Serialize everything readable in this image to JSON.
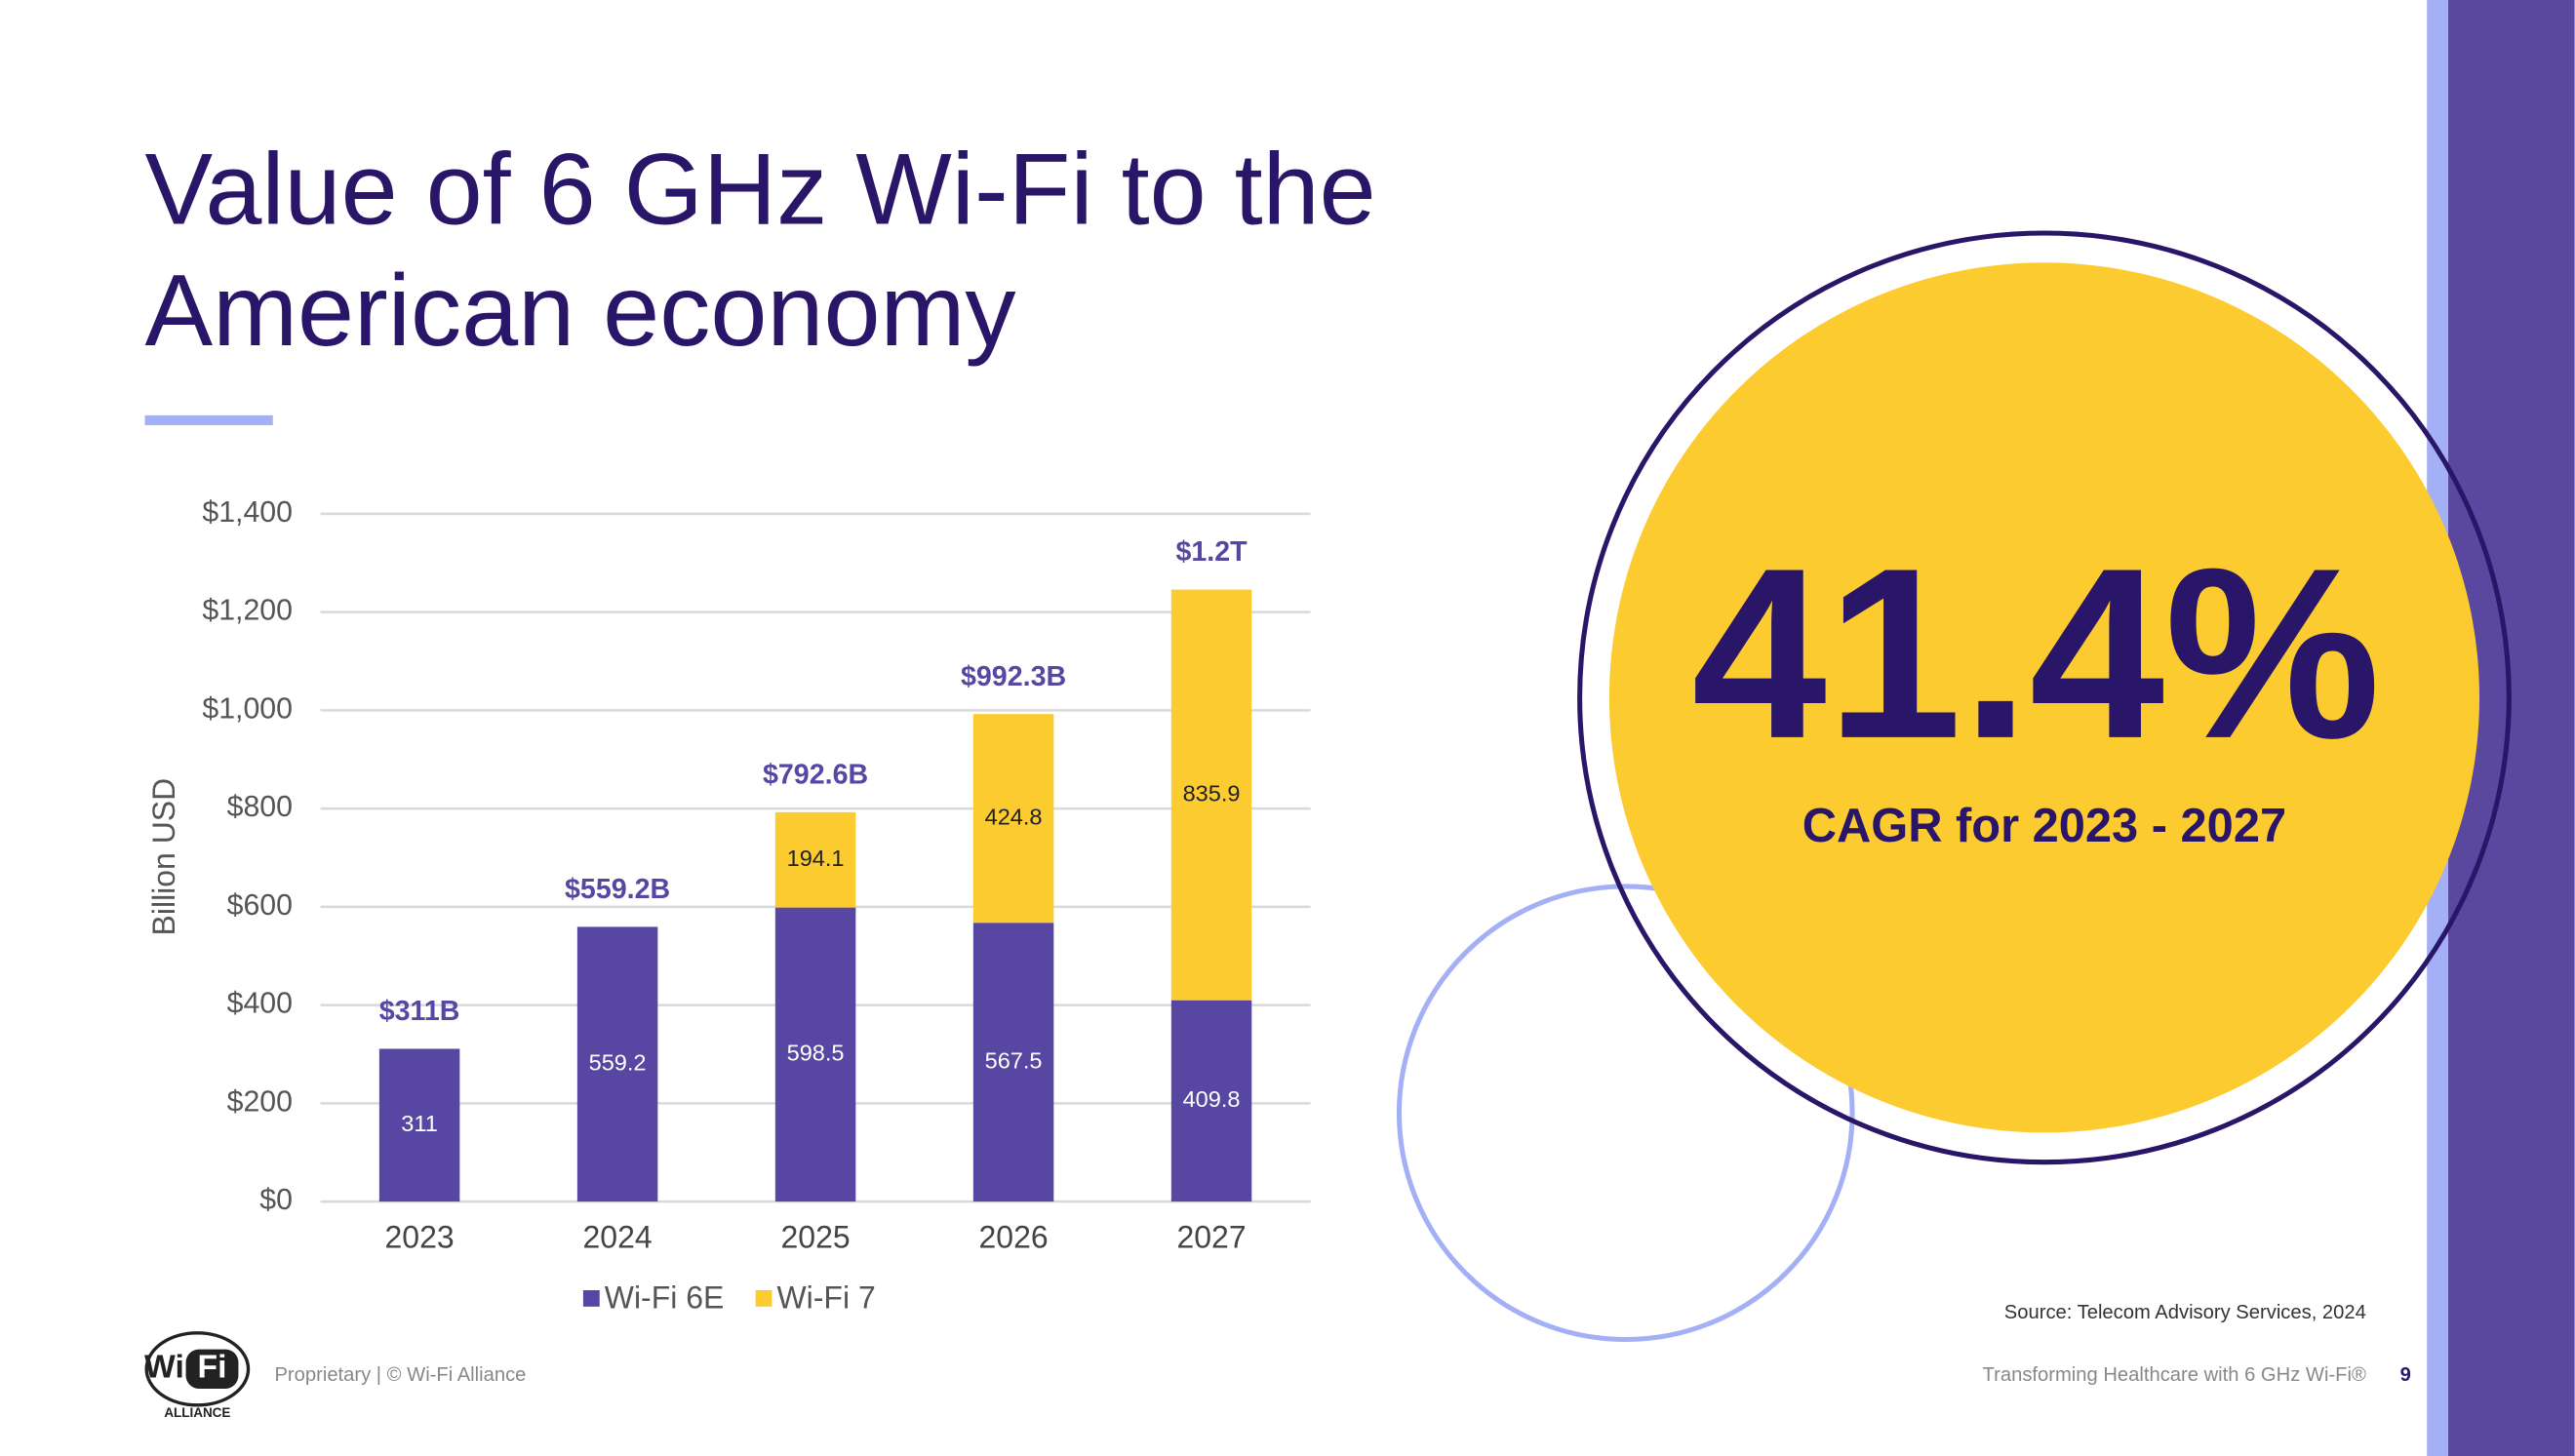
{
  "slide": {
    "title_lines": [
      "Value of 6 GHz Wi-Fi to the",
      "American economy"
    ],
    "stat": "41.4%",
    "stat_caption": "CAGR for 2023 - 2027",
    "source": "Source: Telecom Advisory Services, 2024",
    "footer_left": "Proprietary | © Wi-Fi Alliance",
    "footer_right": "Transforming Healthcare with 6 GHz Wi-Fi®",
    "page_number": "9",
    "logo": {
      "left": "Wi",
      "right": "Fi",
      "sub": "ALLIANCE"
    }
  },
  "chart_data": {
    "type": "stacked_bar",
    "y_axis_label": "Billion USD",
    "categories": [
      "2023",
      "2024",
      "2025",
      "2026",
      "2027"
    ],
    "series": [
      {
        "name": "Wi-Fi 6E",
        "color": "#5846a3",
        "values": [
          311,
          559.2,
          598.5,
          567.5,
          409.8
        ]
      },
      {
        "name": "Wi-Fi 7",
        "color": "#fccb2f",
        "values": [
          null,
          null,
          194.1,
          424.8,
          835.9
        ]
      }
    ],
    "annotations": [
      "$311B",
      "$559.2B",
      "$792.6B",
      "$992.3B",
      "$1.2T"
    ],
    "ylim": [
      0,
      1400
    ],
    "yticks": [
      {
        "value": 0,
        "label": "$0"
      },
      {
        "value": 200,
        "label": "$200"
      },
      {
        "value": 400,
        "label": "$400"
      },
      {
        "value": 600,
        "label": "$600"
      },
      {
        "value": 800,
        "label": "$800"
      },
      {
        "value": 1000,
        "label": "$1,000"
      },
      {
        "value": 1200,
        "label": "$1,200"
      },
      {
        "value": 1400,
        "label": "$1,400"
      }
    ],
    "grid": true,
    "legend": "bottom"
  }
}
